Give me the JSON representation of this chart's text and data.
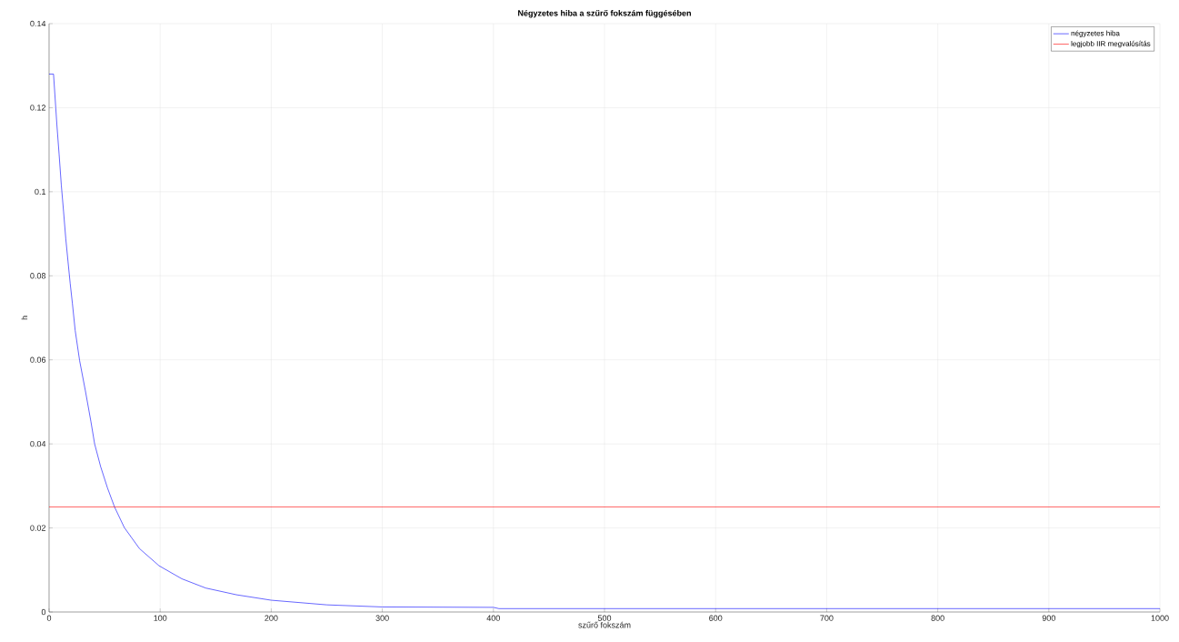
{
  "chart_data": {
    "type": "line",
    "title": "Négyzetes hiba a szűrő fokszám függésében",
    "xlabel": "szűrő fokszám",
    "ylabel": "h",
    "xlim": [
      0,
      1000
    ],
    "ylim": [
      0,
      0.14
    ],
    "xticks": [
      0,
      100,
      200,
      300,
      400,
      500,
      600,
      700,
      800,
      900,
      1000
    ],
    "yticks": [
      0,
      0.02,
      0.04,
      0.06,
      0.08,
      0.1,
      0.12,
      0.14
    ],
    "grid": true,
    "legend": "top right",
    "line_style": "solid",
    "series": [
      {
        "name": "négyzetes hiba",
        "color": "#0000ff",
        "x": [
          0,
          4,
          6,
          7,
          9,
          11,
          13,
          15,
          17,
          19,
          21,
          23.5,
          27.5,
          32.7,
          37.6,
          41,
          46.4,
          52.6,
          58.9,
          67.7,
          81.3,
          99,
          119.5,
          141,
          168.6,
          200,
          250,
          300,
          400,
          405,
          1000
        ],
        "values": [
          0.128,
          0.128,
          0.12,
          0.116,
          0.109,
          0.1016,
          0.0954,
          0.0889,
          0.0835,
          0.0782,
          0.0734,
          0.067,
          0.0598,
          0.0526,
          0.0454,
          0.04,
          0.0346,
          0.0295,
          0.025,
          0.0201,
          0.0151,
          0.011,
          0.0079,
          0.0057,
          0.0041,
          0.0028,
          0.0017,
          0.0012,
          0.0011,
          0.0008,
          0.0008
        ]
      },
      {
        "name": "legjobb IIR megvalósítás",
        "color": "#ff0000",
        "x": [
          0,
          1000
        ],
        "values": [
          0.025,
          0.025
        ]
      }
    ]
  }
}
